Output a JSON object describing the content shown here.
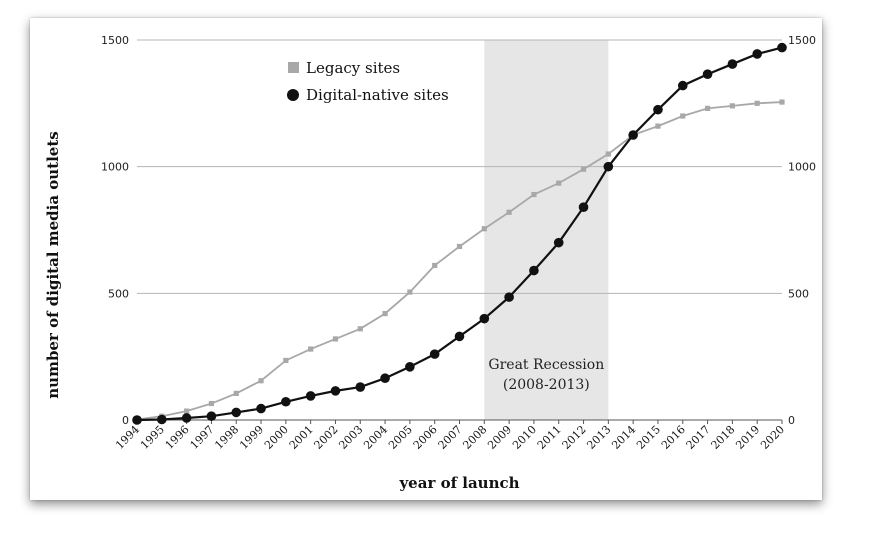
{
  "chart_data": {
    "type": "line",
    "xlabel": "year of launch",
    "ylabel": "number of digital media outlets",
    "x": [
      1994,
      1995,
      1996,
      1997,
      1998,
      1999,
      2000,
      2001,
      2002,
      2003,
      2004,
      2005,
      2006,
      2007,
      2008,
      2009,
      2010,
      2011,
      2012,
      2013,
      2014,
      2015,
      2016,
      2017,
      2018,
      2019,
      2020
    ],
    "x_tick_labels": [
      "1994",
      "1995",
      "1996",
      "1997",
      "1998",
      "1999",
      "2000",
      "2001",
      "2002",
      "2003",
      "2004",
      "2005",
      "2006",
      "2007",
      "2008",
      "2009",
      "2010",
      "2011",
      "2012",
      "2013",
      "2014",
      "2015",
      "2016",
      "2017",
      "2018",
      "2019",
      "2020"
    ],
    "ylim": [
      0,
      1500
    ],
    "y_ticks": [
      0,
      500,
      1000,
      1500
    ],
    "y_tick_labels": [
      "0",
      "500",
      "1000",
      "1500"
    ],
    "right_y_tick_labels": [
      "0",
      "500",
      "1000",
      "1500"
    ],
    "grid": true,
    "legend_position": "top-left",
    "series": [
      {
        "name": "Legacy sites",
        "color": "#a8a8a8",
        "marker": "square",
        "values": [
          2,
          15,
          35,
          65,
          105,
          155,
          235,
          280,
          320,
          360,
          420,
          505,
          610,
          685,
          755,
          820,
          890,
          935,
          990,
          1050,
          1125,
          1160,
          1200,
          1230,
          1240,
          1250,
          1255
        ]
      },
      {
        "name": "Digital-native sites",
        "color": "#111111",
        "marker": "circle",
        "values": [
          0,
          2,
          8,
          15,
          30,
          45,
          72,
          95,
          115,
          130,
          165,
          210,
          260,
          330,
          400,
          485,
          590,
          700,
          840,
          1000,
          1125,
          1225,
          1320,
          1365,
          1405,
          1445,
          1470
        ]
      }
    ],
    "annotations": [
      {
        "type": "shaded-region",
        "x_start": 2008,
        "x_end": 2013,
        "color": "#e6e6e6",
        "label_line1": "Great Recession",
        "label_line2": "(2008-2013)"
      }
    ]
  }
}
